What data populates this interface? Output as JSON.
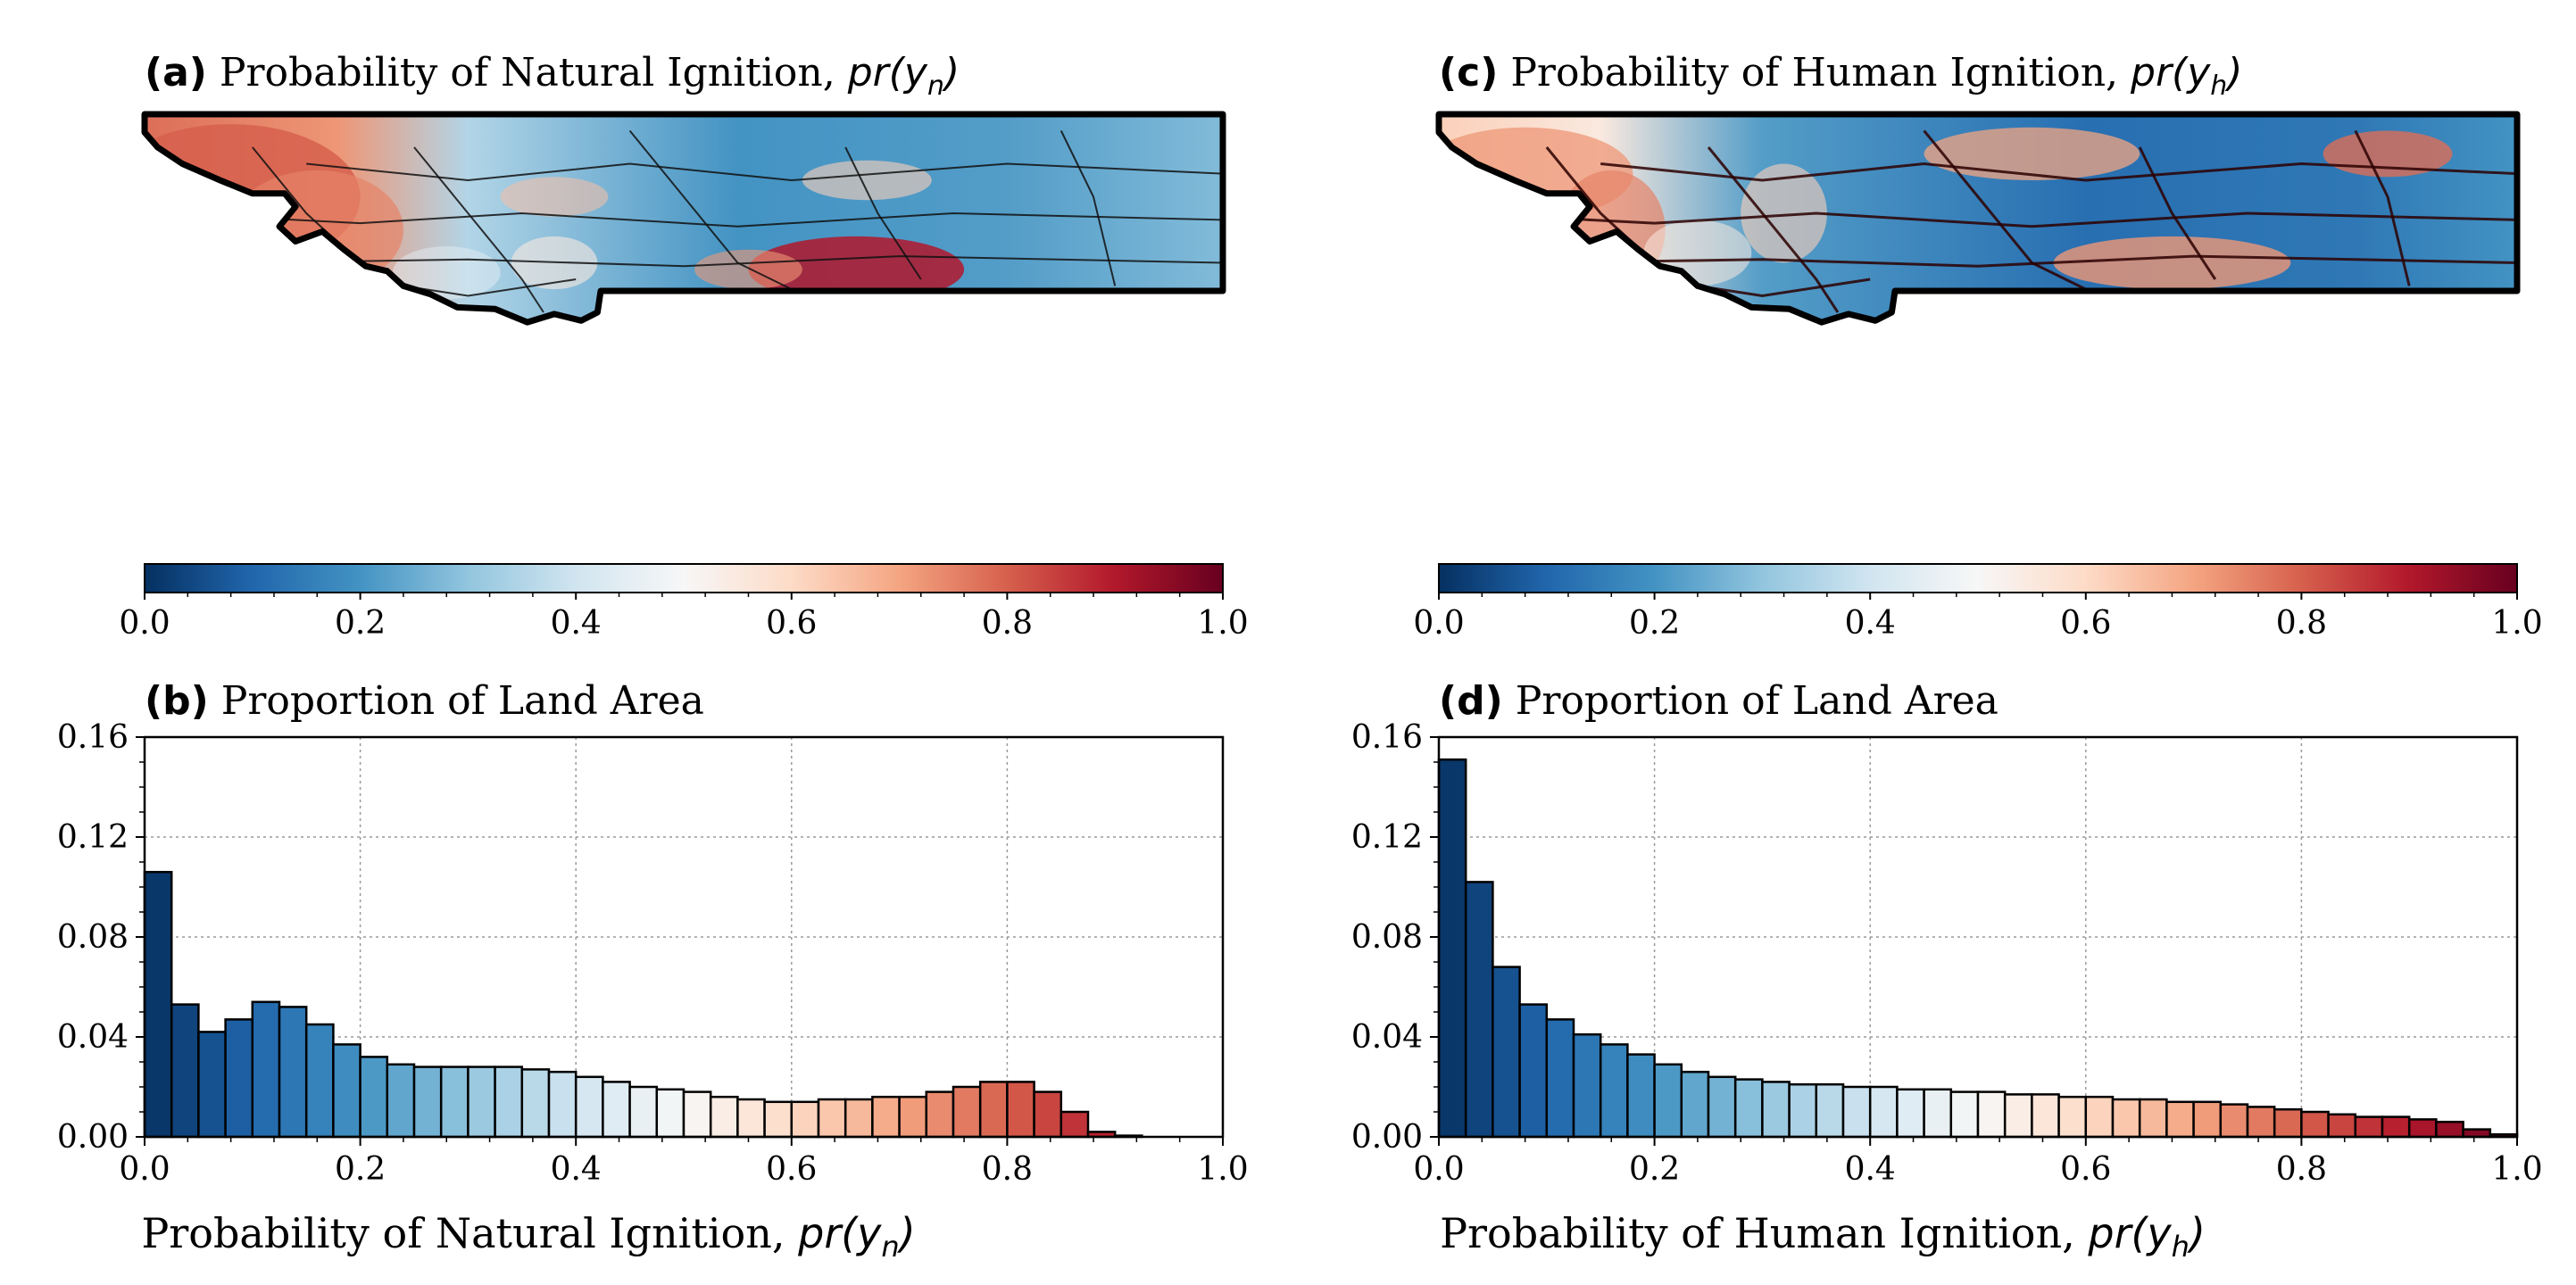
{
  "colors": {
    "rdbu": [
      "#053061",
      "#2166ac",
      "#4393c3",
      "#92c5de",
      "#d1e5f0",
      "#f7f7f7",
      "#fddbc7",
      "#f4a582",
      "#d6604d",
      "#b2182b",
      "#67001f"
    ],
    "grid": "#9a9a9a",
    "frame": "#000000"
  },
  "panels": {
    "a": {
      "tag": "(a)",
      "title_main": "Probability of Natural Ignition, ",
      "title_math_pre": "pr(y",
      "title_math_sub": "n",
      "title_math_post": ")"
    },
    "c": {
      "tag": "(c)",
      "title_main": "Probability of Human Ignition, ",
      "title_math_pre": "pr(y",
      "title_math_sub": "h",
      "title_math_post": ")"
    },
    "b": {
      "tag": "(b)",
      "title_main": "Proportion of Land Area"
    },
    "d": {
      "tag": "(d)",
      "title_main": "Proportion of Land Area"
    }
  },
  "colorbar": {
    "ticks": [
      "0.0",
      "0.2",
      "0.4",
      "0.6",
      "0.8",
      "1.0"
    ]
  },
  "chart_data": [
    {
      "id": "b",
      "type": "bar",
      "title": "Proportion of Land Area",
      "xlabel_main": "Probability of Natural Ignition, ",
      "xlabel_math_pre": "pr(y",
      "xlabel_math_sub": "n",
      "xlabel_math_post": ")",
      "ylabel": "",
      "xlim": [
        0,
        1
      ],
      "ylim": [
        0,
        0.16
      ],
      "xticks": [
        "0.0",
        "0.2",
        "0.4",
        "0.6",
        "0.8",
        "1.0"
      ],
      "yticks": [
        "0.00",
        "0.04",
        "0.08",
        "0.12",
        "0.16"
      ],
      "grid": true,
      "bin_width": 0.025,
      "values": [
        0.106,
        0.053,
        0.042,
        0.047,
        0.054,
        0.052,
        0.045,
        0.037,
        0.032,
        0.029,
        0.028,
        0.028,
        0.028,
        0.028,
        0.027,
        0.026,
        0.024,
        0.022,
        0.02,
        0.019,
        0.018,
        0.016,
        0.015,
        0.014,
        0.014,
        0.015,
        0.015,
        0.016,
        0.016,
        0.018,
        0.02,
        0.022,
        0.022,
        0.018,
        0.01,
        0.002,
        0.0005,
        0,
        0,
        0
      ]
    },
    {
      "id": "d",
      "type": "bar",
      "title": "Proportion of Land Area",
      "xlabel_main": "Probability of Human Ignition, ",
      "xlabel_math_pre": "pr(y",
      "xlabel_math_sub": "h",
      "xlabel_math_post": ")",
      "ylabel": "",
      "xlim": [
        0,
        1
      ],
      "ylim": [
        0,
        0.16
      ],
      "xticks": [
        "0.0",
        "0.2",
        "0.4",
        "0.6",
        "0.8",
        "1.0"
      ],
      "yticks": [
        "0.00",
        "0.04",
        "0.08",
        "0.12",
        "0.16"
      ],
      "grid": true,
      "bin_width": 0.025,
      "values": [
        0.151,
        0.102,
        0.068,
        0.053,
        0.047,
        0.041,
        0.037,
        0.033,
        0.029,
        0.026,
        0.024,
        0.023,
        0.022,
        0.021,
        0.021,
        0.02,
        0.02,
        0.019,
        0.019,
        0.018,
        0.018,
        0.017,
        0.017,
        0.016,
        0.016,
        0.015,
        0.015,
        0.014,
        0.014,
        0.013,
        0.012,
        0.011,
        0.01,
        0.009,
        0.008,
        0.008,
        0.007,
        0.006,
        0.003,
        0.001
      ]
    }
  ]
}
